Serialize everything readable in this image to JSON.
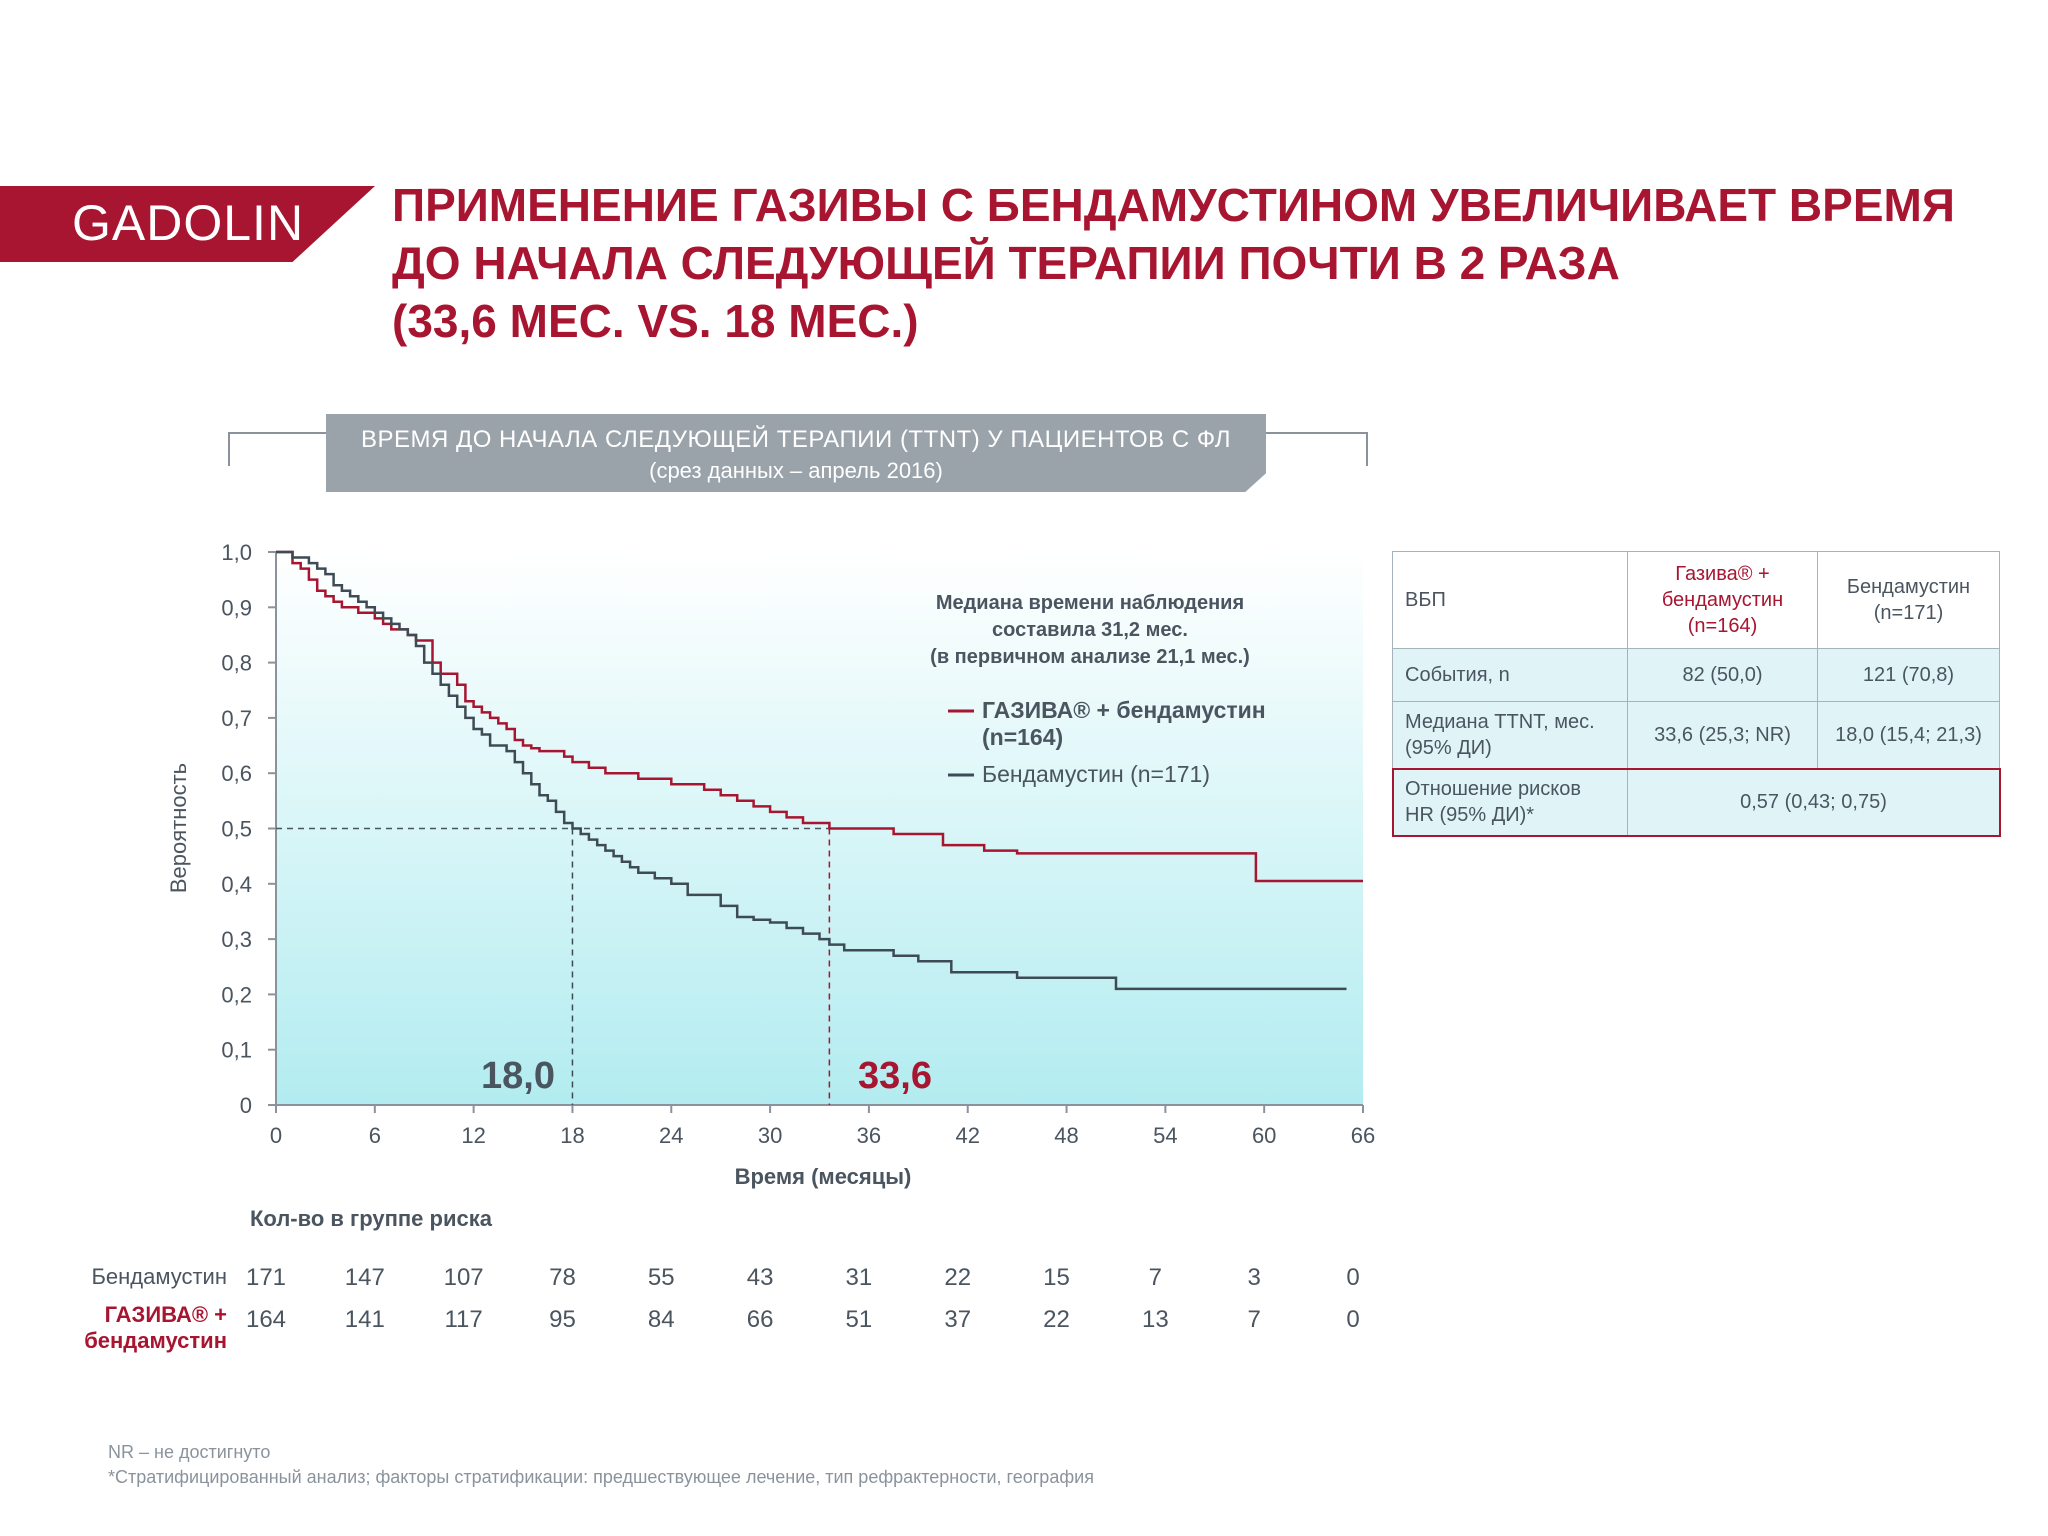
{
  "brand": "GADOLIN",
  "title": {
    "lines": [
      "ПРИМЕНЕНИЕ ГАЗИВЫ С БЕНДАМУСТИНОМ УВЕЛИЧИВАЕТ ВРЕМЯ",
      "ДО НАЧАЛА СЛЕДУЮЩЕЙ ТЕРАПИИ ПОЧТИ В 2 РАЗА",
      "(33,6 МЕС. VS. 18 МЕС.)"
    ]
  },
  "subtitle": {
    "line1": "ВРЕМЯ ДО НАЧАЛА СЛЕДУЮЩЕЙ ТЕРАПИИ (TTNT) У ПАЦИЕНТОВ С ФЛ",
    "line2": "(срез данных – апрель 2016)"
  },
  "colors": {
    "brand_red": "#a81530",
    "gray_series": "#3e4a54",
    "banner_gray": "#9aa2aa",
    "plot_gradient_top": "#ffffff",
    "plot_gradient_bottom": "#b2ecf0"
  },
  "chart_data": {
    "type": "line",
    "step": true,
    "xlabel": "Время (месяцы)",
    "ylabel": "Вероятность",
    "xlim": [
      0,
      66
    ],
    "ylim": [
      0,
      1
    ],
    "xticks": [
      0,
      6,
      12,
      18,
      24,
      30,
      36,
      42,
      48,
      54,
      60,
      66
    ],
    "yticks": [
      0,
      0.1,
      0.2,
      0.3,
      0.4,
      0.5,
      0.6,
      0.7,
      0.8,
      0.9,
      1.0
    ],
    "ytick_labels": [
      "0",
      "0,1",
      "0,2",
      "0,3",
      "0,4",
      "0,5",
      "0,6",
      "0,7",
      "0,8",
      "0,9",
      "1,0"
    ],
    "annotation_lines": [
      "Медиана времени наблюдения",
      "составила 31,2 мес.",
      "(в первичном анализе 21,1 мес.)"
    ],
    "median_line_y": 0.5,
    "medians": [
      {
        "x": 18.0,
        "label": "18,0",
        "series": "Бендамустин"
      },
      {
        "x": 33.6,
        "label": "33,6",
        "series": "ГАЗИВА® + бендамустин"
      }
    ],
    "series": [
      {
        "name": "ГАЗИВА® + бендамустин (n=164)",
        "legend_lines": [
          "ГАЗИВА® + бендамустин",
          "(n=164)"
        ],
        "color": "#a81530",
        "x": [
          0,
          1,
          1.5,
          2,
          2.5,
          3,
          3.5,
          4,
          5,
          6,
          6.5,
          7,
          8,
          8.5,
          9.5,
          10,
          11,
          11.5,
          12,
          12.5,
          13,
          13.5,
          14,
          14.5,
          15,
          15.5,
          16,
          17.5,
          18,
          19,
          20,
          22,
          24,
          26,
          27,
          28,
          29,
          30,
          31,
          32,
          33.6,
          37.5,
          40.5,
          43,
          45,
          48,
          50,
          59.5,
          66
        ],
        "y": [
          1.0,
          0.98,
          0.97,
          0.95,
          0.93,
          0.92,
          0.91,
          0.9,
          0.89,
          0.88,
          0.87,
          0.86,
          0.85,
          0.84,
          0.8,
          0.78,
          0.76,
          0.73,
          0.72,
          0.71,
          0.7,
          0.69,
          0.68,
          0.66,
          0.65,
          0.645,
          0.64,
          0.63,
          0.62,
          0.61,
          0.6,
          0.59,
          0.58,
          0.57,
          0.56,
          0.55,
          0.54,
          0.53,
          0.52,
          0.51,
          0.5,
          0.49,
          0.47,
          0.46,
          0.455,
          0.455,
          0.455,
          0.405,
          0.405
        ]
      },
      {
        "name": "Бендамустин (n=171)",
        "legend_lines": [
          "Бендамустин (n=171)"
        ],
        "color": "#3e4a54",
        "x": [
          0,
          1,
          2,
          2.5,
          3,
          3.5,
          4,
          4.5,
          5,
          5.5,
          6,
          6.5,
          7,
          7.5,
          8,
          8.5,
          9,
          9.5,
          10,
          10.5,
          11,
          11.5,
          12,
          12.5,
          13,
          14,
          14.5,
          15,
          15.5,
          16,
          16.5,
          17,
          17.5,
          18,
          18.5,
          19,
          19.5,
          20,
          20.5,
          21,
          21.5,
          22,
          23,
          24,
          25,
          27,
          28,
          29,
          30,
          31,
          32,
          33,
          33.6,
          34.5,
          37.5,
          39,
          41,
          45,
          51,
          65
        ],
        "y": [
          1.0,
          0.99,
          0.98,
          0.97,
          0.96,
          0.94,
          0.93,
          0.92,
          0.91,
          0.9,
          0.89,
          0.88,
          0.87,
          0.86,
          0.85,
          0.83,
          0.8,
          0.78,
          0.76,
          0.74,
          0.72,
          0.7,
          0.68,
          0.67,
          0.65,
          0.64,
          0.62,
          0.6,
          0.58,
          0.56,
          0.55,
          0.53,
          0.51,
          0.5,
          0.49,
          0.48,
          0.47,
          0.46,
          0.45,
          0.44,
          0.43,
          0.42,
          0.41,
          0.4,
          0.38,
          0.36,
          0.34,
          0.335,
          0.33,
          0.32,
          0.31,
          0.3,
          0.29,
          0.28,
          0.27,
          0.26,
          0.24,
          0.23,
          0.21,
          0.21
        ]
      }
    ]
  },
  "summary_table": {
    "header": {
      "label": "ВБП",
      "col1": "Газива® + бендамустин (n=164)",
      "col1_lines": [
        "Газива® +",
        "бендамустин",
        "(n=164)"
      ],
      "col2_lines": [
        "Бендамустин",
        "(n=171)"
      ]
    },
    "rows": [
      {
        "label": "События, n",
        "col1": "82 (50,0)",
        "col2": "121 (70,8)"
      },
      {
        "label_lines": [
          "Медиана TTNT, мес.",
          "(95% ДИ)"
        ],
        "col1": "33,6 (25,3; NR)",
        "col2": "18,0 (15,4; 21,3)"
      }
    ],
    "hr_row": {
      "label_lines": [
        "Отношение рисков",
        "HR (95% ДИ)*"
      ],
      "value": "0,57 (0,43; 0,75)"
    }
  },
  "risk_table": {
    "title": "Кол-во в группе риска",
    "rows": [
      {
        "label": "Бендамустин",
        "values": [
          "171",
          "147",
          "107",
          "78",
          "55",
          "43",
          "31",
          "22",
          "15",
          "7",
          "3",
          "0"
        ]
      },
      {
        "label_lines": [
          "ГАЗИВА® +",
          "бендамустин"
        ],
        "values": [
          "164",
          "141",
          "117",
          "95",
          "84",
          "66",
          "51",
          "37",
          "22",
          "13",
          "7",
          "0"
        ]
      }
    ]
  },
  "footnotes": [
    "NR – не достигнуто",
    "*Стратифицированный анализ; факторы стратификации: предшествующее лечение, тип рефрактерности, география"
  ]
}
